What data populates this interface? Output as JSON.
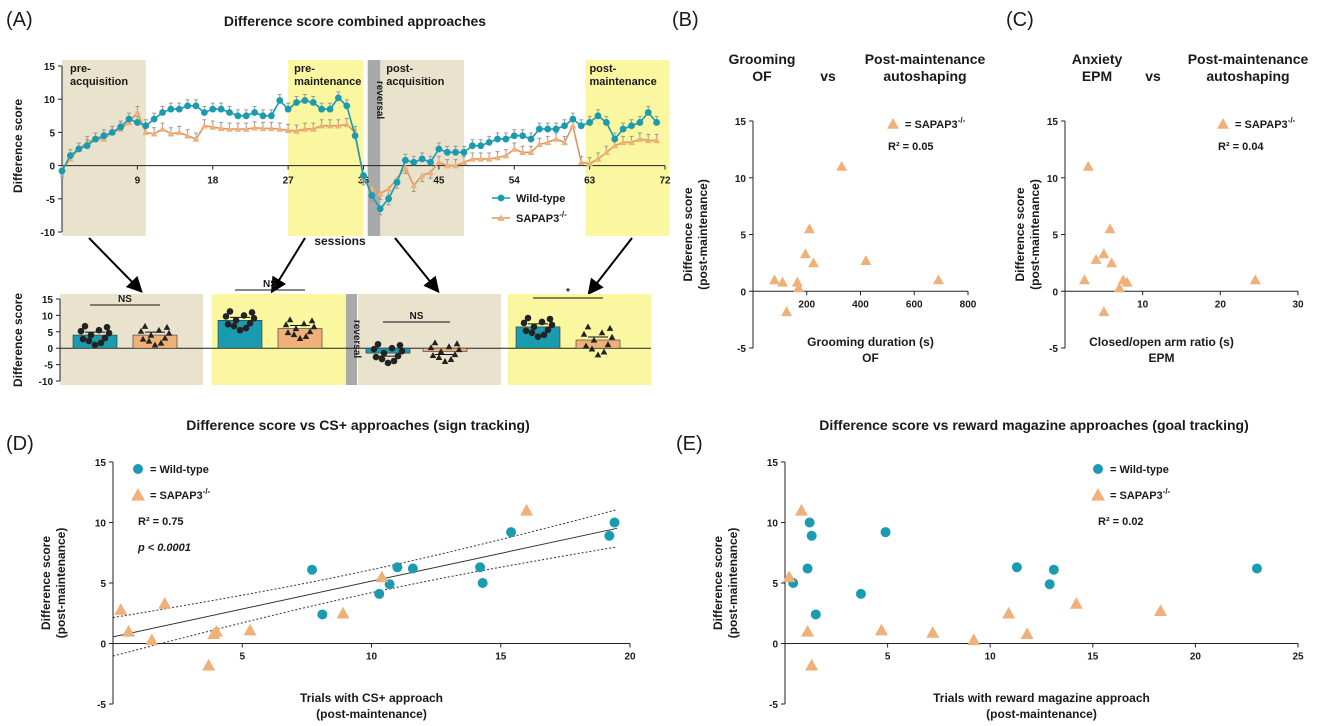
{
  "colors": {
    "wt": "#1a9bb0",
    "sap": "#f0b07a",
    "sapLine": "#d59a63",
    "tan": "#e9e2cc",
    "yellow": "#fbf7a0",
    "gray": "#a9a9a9"
  },
  "panelA": {
    "label": "(A)",
    "title": "Difference score combined approaches",
    "xlabel": "sessions",
    "ylabel": "Difference score",
    "xticks": [
      "9",
      "18",
      "27",
      "36",
      "45",
      "54",
      "63",
      "72"
    ],
    "yticks": [
      "15",
      "10",
      "5",
      "0",
      "-5",
      "-10"
    ],
    "phases": [
      "pre-\nacquisition",
      "pre-\nmaintenance",
      "post-\nacquisition",
      "post-\nmaintenance"
    ],
    "reversal": "reversal",
    "legend": [
      "Wild-type",
      "SAPAP3-/-"
    ],
    "chart_data": {
      "type": "line",
      "x_range": [
        0,
        72
      ],
      "ylim": [
        -10,
        15
      ],
      "series": [
        {
          "name": "Wild-type",
          "values": [
            -0.8,
            1.5,
            2.5,
            3,
            4,
            4.5,
            5,
            5.8,
            7,
            6.5,
            6,
            7,
            8,
            8.5,
            8.5,
            9,
            9,
            8,
            8.5,
            8.5,
            8,
            7.5,
            7.5,
            8,
            7.5,
            7.5,
            9.8,
            8.5,
            9.5,
            9.8,
            9.5,
            8.5,
            8.5,
            10.2,
            9,
            4.5,
            -1.5,
            -4.5,
            -6.5,
            -5,
            -2.5,
            0.8,
            0.5,
            1,
            0.5,
            2.5,
            2,
            2,
            2,
            3,
            3,
            3.5,
            4,
            4,
            4.5,
            4.5,
            4,
            5.5,
            5.5,
            5.5,
            6,
            7,
            6,
            6.5,
            7.5,
            6.5,
            4,
            5.5,
            6,
            6.5,
            8,
            6.5
          ]
        },
        {
          "name": "SAPAP3-/-",
          "values": [
            -0.5,
            1,
            2.5,
            3.5,
            4,
            4,
            5,
            5.5,
            6.5,
            8,
            5,
            4.8,
            5.5,
            4.8,
            5,
            4.5,
            4,
            6,
            5.8,
            5.6,
            5.5,
            5.5,
            5.5,
            5.7,
            5.6,
            5.6,
            5.5,
            5.3,
            5.2,
            5.5,
            5.5,
            6,
            6,
            6,
            6.2,
            5,
            -2,
            -3.5,
            -4.2,
            -3.5,
            -2,
            -0.3,
            -3,
            -1.5,
            -1,
            0.5,
            0,
            0,
            0.5,
            1,
            1,
            1,
            1.2,
            1.5,
            2.5,
            2,
            2,
            3.2,
            3.5,
            4,
            3.5,
            6,
            0.5,
            0.3,
            1,
            2,
            3,
            3.5,
            3.5,
            4,
            3.8,
            3.8
          ]
        }
      ]
    }
  },
  "bars": {
    "ylabel": "Difference score",
    "yticks": [
      "15",
      "10",
      "5",
      "0",
      "-5",
      "-10"
    ],
    "sig": [
      "NS",
      "NS",
      "NS",
      "*"
    ],
    "reversal": "reversal",
    "chart_data": {
      "type": "bar",
      "ylim": [
        -10,
        15
      ],
      "categories": [
        "pre-acquisition",
        "pre-maintenance",
        "post-acquisition",
        "post-maintenance"
      ],
      "series": [
        {
          "name": "Wild-type",
          "values": [
            4,
            8.5,
            -1.5,
            6.5
          ]
        },
        {
          "name": "SAPAP3-/-",
          "values": [
            4,
            6,
            -1,
            2.5
          ]
        }
      ]
    }
  },
  "panelB": {
    "label": "(B)",
    "title_left": "Grooming\nOF",
    "vs": "vs",
    "title_right": "Post-maintenance\nautoshaping",
    "xlabel1": "Grooming duration (s)",
    "xlabel2": "OF",
    "ylabel1": "Difference score",
    "ylabel2": "(post-maintenance)",
    "xticks": [
      "200",
      "400",
      "600",
      "800"
    ],
    "yticks": [
      "15",
      "10",
      "5",
      "0",
      "-5"
    ],
    "legend": "= SAPAP3-/-",
    "r2": "R² = 0.05",
    "chart_data": {
      "type": "scatter",
      "xlim": [
        0,
        800
      ],
      "ylim": [
        -5,
        15
      ],
      "series": [
        {
          "name": "SAPAP3-/-",
          "points": [
            [
              80,
              1
            ],
            [
              110,
              0.8
            ],
            [
              125,
              -1.8
            ],
            [
              165,
              0.8
            ],
            [
              170,
              0.3
            ],
            [
              195,
              3.3
            ],
            [
              210,
              5.5
            ],
            [
              225,
              2.5
            ],
            [
              330,
              11
            ],
            [
              420,
              2.7
            ],
            [
              690,
              1
            ]
          ]
        }
      ]
    }
  },
  "panelC": {
    "label": "(C)",
    "title_left": "Anxiety\nEPM",
    "vs": "vs",
    "title_right": "Post-maintenance\nautoshaping",
    "xlabel1": "Closed/open arm ratio (s)",
    "xlabel2": "EPM",
    "ylabel1": "Difference score",
    "ylabel2": "(post-maintenance)",
    "xticks": [
      "10",
      "20",
      "30"
    ],
    "yticks": [
      "15",
      "10",
      "5",
      "0",
      "-5"
    ],
    "legend": "= SAPAP3-/-",
    "r2": "R² = 0.04",
    "chart_data": {
      "type": "scatter",
      "xlim": [
        0,
        30
      ],
      "ylim": [
        -5,
        15
      ],
      "series": [
        {
          "name": "SAPAP3-/-",
          "points": [
            [
              2.5,
              1
            ],
            [
              3,
              11
            ],
            [
              4,
              2.8
            ],
            [
              5,
              -1.8
            ],
            [
              5,
              3.3
            ],
            [
              5.8,
              5.5
            ],
            [
              6,
              2.5
            ],
            [
              7,
              0.3
            ],
            [
              7.5,
              1
            ],
            [
              8,
              0.8
            ],
            [
              24.5,
              1
            ]
          ]
        }
      ]
    }
  },
  "panelD": {
    "label": "(D)",
    "title": "Difference score vs CS+ approaches (sign tracking)",
    "xlabel1": "Trials with CS+ approach",
    "xlabel2": "(post-maintenance)",
    "ylabel1": "Difference score",
    "ylabel2": "(post-maintenance)",
    "xticks": [
      "5",
      "10",
      "15",
      "20"
    ],
    "yticks": [
      "15",
      "10",
      "5",
      "0",
      "-5"
    ],
    "legend": [
      "= Wild-type",
      "= SAPAP3-/-"
    ],
    "r2": "R² = 0.75",
    "p": "p < 0.0001",
    "chart_data": {
      "type": "scatter",
      "xlim": [
        0,
        20
      ],
      "ylim": [
        -5,
        15
      ],
      "series": [
        {
          "name": "Wild-type",
          "points": [
            [
              7.7,
              6.1
            ],
            [
              8.1,
              2.4
            ],
            [
              10.3,
              4.1
            ],
            [
              10.7,
              4.9
            ],
            [
              11,
              6.3
            ],
            [
              11.6,
              6.2
            ],
            [
              14.2,
              6.3
            ],
            [
              14.3,
              5
            ],
            [
              15.4,
              9.2
            ],
            [
              19.2,
              8.9
            ],
            [
              19.4,
              10
            ]
          ]
        },
        {
          "name": "SAPAP3-/-",
          "points": [
            [
              0.3,
              2.8
            ],
            [
              0.6,
              1
            ],
            [
              1.5,
              0.3
            ],
            [
              2,
              3.3
            ],
            [
              3.7,
              -1.8
            ],
            [
              3.9,
              0.8
            ],
            [
              4,
              1
            ],
            [
              5.3,
              1.1
            ],
            [
              8.9,
              2.5
            ],
            [
              10.4,
              5.5
            ],
            [
              16,
              11
            ]
          ]
        }
      ],
      "fit": {
        "slope": 0.46,
        "intercept": 0.55
      }
    }
  },
  "panelE": {
    "label": "(E)",
    "title": "Difference score vs reward magazine approaches (goal tracking)",
    "xlabel1": "Trials with reward magazine approach",
    "xlabel2": "(post-maintenance)",
    "ylabel1": "Difference score",
    "ylabel2": "(post-maintenance)",
    "xticks": [
      "5",
      "10",
      "15",
      "20",
      "25"
    ],
    "yticks": [
      "15",
      "10",
      "5",
      "0",
      "-5"
    ],
    "legend": [
      "= Wild-type",
      "= SAPAP3-/-"
    ],
    "r2": "R² = 0.02",
    "chart_data": {
      "type": "scatter",
      "xlim": [
        0,
        25
      ],
      "ylim": [
        -5,
        15
      ],
      "series": [
        {
          "name": "Wild-type",
          "points": [
            [
              0.4,
              5
            ],
            [
              1.1,
              6.2
            ],
            [
              1.2,
              10
            ],
            [
              1.3,
              8.9
            ],
            [
              1.5,
              2.4
            ],
            [
              3.7,
              4.1
            ],
            [
              4.9,
              9.2
            ],
            [
              11.3,
              6.3
            ],
            [
              12.9,
              4.9
            ],
            [
              13.1,
              6.1
            ],
            [
              23,
              6.2
            ]
          ]
        },
        {
          "name": "SAPAP3-/-",
          "points": [
            [
              0.2,
              5.5
            ],
            [
              0.8,
              11
            ],
            [
              1.1,
              1
            ],
            [
              1.3,
              -1.8
            ],
            [
              4.7,
              1.1
            ],
            [
              7.2,
              0.9
            ],
            [
              9.2,
              0.3
            ],
            [
              10.9,
              2.5
            ],
            [
              11.8,
              0.8
            ],
            [
              14.2,
              3.3
            ],
            [
              18.3,
              2.7
            ]
          ]
        }
      ]
    }
  }
}
